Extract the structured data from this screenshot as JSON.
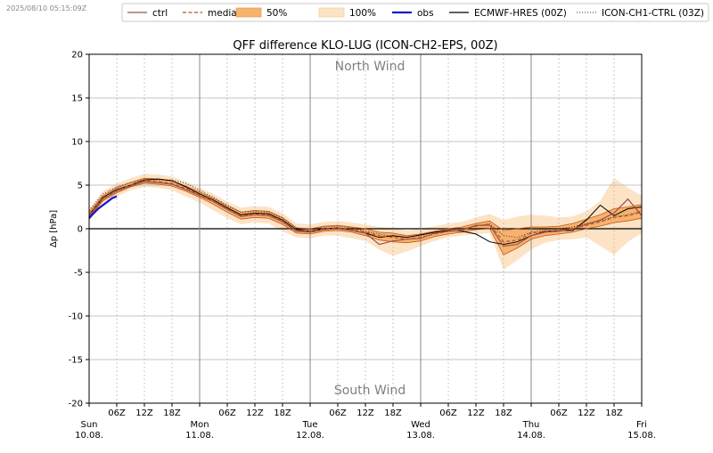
{
  "timestamp": "2025/08/10 05:15:09Z",
  "chart_data": {
    "type": "line",
    "title": "QFF difference KLO-LUG (ICON-CH2-EPS, 00Z)",
    "ylabel": "Δp [hPa]",
    "xlabel": "",
    "ylim": [
      -20,
      20
    ],
    "xlim_hours": [
      0,
      120
    ],
    "yticks": [
      -20,
      -15,
      -10,
      -5,
      0,
      5,
      10,
      15,
      20
    ],
    "grid": true,
    "legend_position": "top",
    "annotations": {
      "north": "North Wind",
      "south": "South Wind"
    },
    "hour_ticks": [
      {
        "h": 6,
        "label": "06Z"
      },
      {
        "h": 12,
        "label": "12Z"
      },
      {
        "h": 18,
        "label": "18Z"
      },
      {
        "h": 30,
        "label": "06Z"
      },
      {
        "h": 36,
        "label": "12Z"
      },
      {
        "h": 42,
        "label": "18Z"
      },
      {
        "h": 54,
        "label": "06Z"
      },
      {
        "h": 60,
        "label": "12Z"
      },
      {
        "h": 66,
        "label": "18Z"
      },
      {
        "h": 78,
        "label": "06Z"
      },
      {
        "h": 84,
        "label": "12Z"
      },
      {
        "h": 90,
        "label": "18Z"
      },
      {
        "h": 102,
        "label": "06Z"
      },
      {
        "h": 108,
        "label": "12Z"
      },
      {
        "h": 114,
        "label": "18Z"
      }
    ],
    "day_ticks": [
      {
        "h": 0,
        "day": "Sun",
        "date": "10.08."
      },
      {
        "h": 24,
        "day": "Mon",
        "date": "11.08."
      },
      {
        "h": 48,
        "day": "Tue",
        "date": "12.08."
      },
      {
        "h": 72,
        "day": "Wed",
        "date": "13.08."
      },
      {
        "h": 96,
        "day": "Thu",
        "date": "14.08."
      },
      {
        "h": 120,
        "day": "Fri",
        "date": "15.08."
      }
    ],
    "legend": [
      {
        "key": "ctrl",
        "label": "ctrl"
      },
      {
        "key": "median",
        "label": "median"
      },
      {
        "key": "p50",
        "label": "50%"
      },
      {
        "key": "p100",
        "label": "100%"
      },
      {
        "key": "obs",
        "label": "obs"
      },
      {
        "key": "hres",
        "label": "ECMWF-HRES (00Z)"
      },
      {
        "key": "ch1",
        "label": "ICON-CH1-CTRL (03Z)"
      }
    ],
    "colors": {
      "ctrl": "#a0504a",
      "median": "#b5502a",
      "p50": "#f7b26d",
      "p100": "#fde3c6",
      "obs": "#1515c8",
      "hres": "#000000",
      "ch1": "#333333",
      "band_edge": "#c05a18"
    },
    "x": [
      0,
      3,
      6,
      9,
      12,
      15,
      18,
      21,
      24,
      27,
      30,
      33,
      36,
      39,
      42,
      45,
      48,
      51,
      54,
      57,
      60,
      63,
      66,
      69,
      72,
      75,
      78,
      81,
      84,
      87,
      90,
      93,
      96,
      99,
      102,
      105,
      108,
      111,
      114,
      117,
      120
    ],
    "series": {
      "median": [
        1.6,
        3.5,
        4.4,
        5.0,
        5.5,
        5.4,
        5.2,
        4.6,
        3.9,
        3.2,
        2.3,
        1.5,
        1.7,
        1.6,
        0.9,
        -0.2,
        -0.3,
        0.0,
        0.1,
        -0.1,
        -0.4,
        -0.8,
        -1.0,
        -1.2,
        -1.0,
        -0.6,
        -0.3,
        -0.1,
        0.3,
        0.5,
        -1.5,
        -1.3,
        -0.5,
        -0.3,
        -0.2,
        0.0,
        0.4,
        0.8,
        1.3,
        1.5,
        1.9
      ],
      "ctrl": [
        1.4,
        3.4,
        4.3,
        4.9,
        5.4,
        5.3,
        5.1,
        4.5,
        3.8,
        3.1,
        2.2,
        1.4,
        1.6,
        1.5,
        0.8,
        -0.3,
        -0.4,
        -0.1,
        0.0,
        -0.2,
        -0.5,
        -1.8,
        -1.4,
        -1.2,
        -1.1,
        -0.5,
        -0.3,
        -0.2,
        0.4,
        0.4,
        -2.0,
        -1.8,
        -0.8,
        -0.4,
        -0.3,
        0.0,
        0.5,
        1.0,
        1.8,
        3.4,
        1.5
      ],
      "p50_lo": [
        1.3,
        3.2,
        4.1,
        4.8,
        5.2,
        5.1,
        4.9,
        4.3,
        3.6,
        2.8,
        1.9,
        1.1,
        1.3,
        1.2,
        0.5,
        -0.5,
        -0.6,
        -0.3,
        -0.2,
        -0.4,
        -0.8,
        -1.3,
        -1.5,
        -1.6,
        -1.4,
        -0.9,
        -0.6,
        -0.4,
        -0.1,
        0.0,
        -3.0,
        -2.2,
        -1.2,
        -0.8,
        -0.6,
        -0.4,
        0.0,
        0.3,
        0.7,
        0.9,
        1.2
      ],
      "p50_hi": [
        1.9,
        3.8,
        4.7,
        5.3,
        5.8,
        5.7,
        5.5,
        4.9,
        4.2,
        3.5,
        2.6,
        1.9,
        2.1,
        2.0,
        1.3,
        0.1,
        0.0,
        0.3,
        0.4,
        0.2,
        0.0,
        -0.4,
        -0.5,
        -0.8,
        -0.6,
        -0.3,
        0.0,
        0.2,
        0.6,
        0.9,
        -0.2,
        0.0,
        0.2,
        0.2,
        0.3,
        0.6,
        1.1,
        1.6,
        2.3,
        2.5,
        2.8
      ],
      "p100_lo": [
        0.9,
        2.8,
        3.7,
        4.4,
        4.8,
        4.7,
        4.4,
        3.7,
        3.0,
        2.1,
        1.2,
        0.5,
        0.7,
        0.6,
        -0.3,
        -1.0,
        -1.1,
        -0.8,
        -0.8,
        -1.1,
        -1.4,
        -2.4,
        -3.1,
        -2.6,
        -2.0,
        -1.4,
        -1.0,
        -0.8,
        -0.6,
        -0.5,
        -4.7,
        -3.6,
        -2.4,
        -1.6,
        -1.3,
        -1.2,
        -1.0,
        -2.0,
        -3.0,
        -1.5,
        -0.5
      ],
      "p100_hi": [
        2.3,
        4.3,
        5.2,
        5.8,
        6.3,
        6.2,
        6.0,
        5.4,
        4.7,
        4.0,
        3.1,
        2.4,
        2.6,
        2.5,
        1.8,
        0.6,
        0.5,
        0.8,
        0.9,
        0.7,
        0.5,
        0.2,
        0.1,
        -0.2,
        0.0,
        0.3,
        0.6,
        0.8,
        1.3,
        1.7,
        1.0,
        1.4,
        1.6,
        1.5,
        1.3,
        1.4,
        2.0,
        3.2,
        5.8,
        4.7,
        3.8
      ],
      "hres": [
        1.6,
        3.6,
        4.5,
        5.0,
        5.6,
        5.7,
        5.5,
        4.8,
        4.0,
        3.3,
        2.4,
        1.6,
        1.8,
        1.7,
        1.0,
        -0.1,
        -0.3,
        0.0,
        0.1,
        -0.2,
        -0.5,
        -1.0,
        -0.8,
        -1.0,
        -0.7,
        -0.4,
        -0.2,
        -0.3,
        -0.6,
        -1.5,
        -1.8,
        -1.5,
        -0.8,
        -0.3,
        -0.2,
        -0.2,
        1.0,
        2.7,
        1.5,
        2.3,
        2.5
      ],
      "ch1_x": [
        0,
        3,
        6,
        9,
        12,
        15,
        18,
        21,
        24,
        27,
        30,
        33,
        36,
        39,
        42,
        45,
        48,
        51,
        54,
        57,
        60,
        63,
        66,
        69,
        72,
        75,
        78,
        81,
        84,
        87,
        90,
        93,
        96,
        99,
        102,
        105,
        108,
        111,
        114,
        117,
        120
      ],
      "ch1": [
        2.1,
        4.0,
        4.8,
        5.3,
        5.6,
        5.6,
        5.6,
        5.2,
        4.4,
        3.6,
        2.7,
        1.9,
        2.0,
        1.9,
        1.2,
        0.1,
        -0.1,
        0.2,
        0.3,
        0.1,
        -0.3,
        -0.6,
        -0.9,
        -1.0,
        -0.8,
        -0.4,
        -0.1,
        0.0,
        0.3,
        0.6,
        -0.8,
        -1.0,
        -0.4,
        -0.1,
        0.0,
        0.2,
        0.6,
        0.9,
        1.4,
        1.6,
        2.0
      ],
      "obs_x": [
        0,
        1,
        2,
        3,
        4,
        5,
        6
      ],
      "obs": [
        1.2,
        1.8,
        2.3,
        2.7,
        3.1,
        3.5,
        3.7
      ]
    }
  }
}
